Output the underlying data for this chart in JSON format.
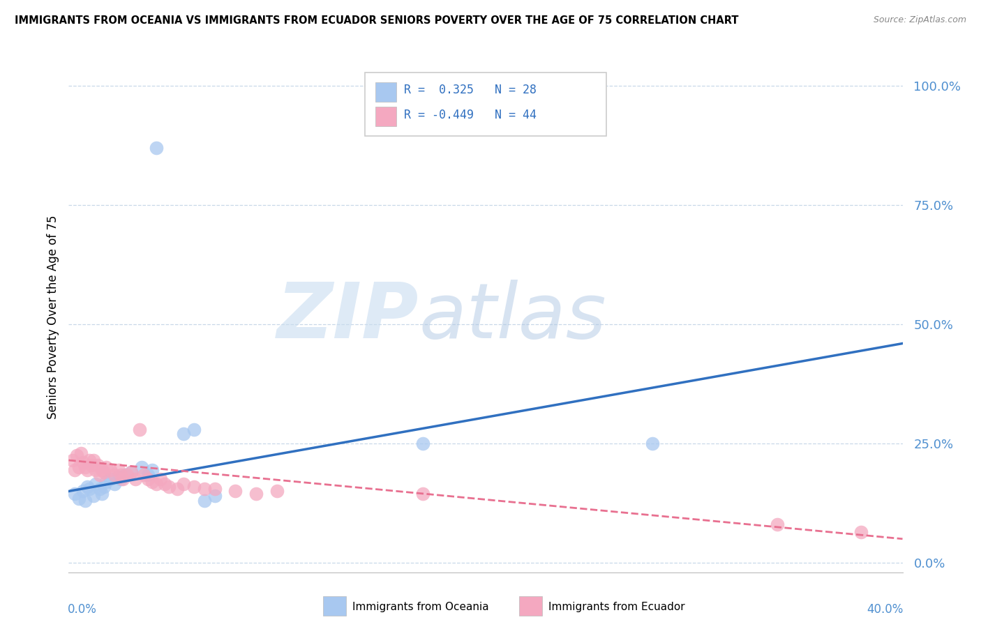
{
  "title": "IMMIGRANTS FROM OCEANIA VS IMMIGRANTS FROM ECUADOR SENIORS POVERTY OVER THE AGE OF 75 CORRELATION CHART",
  "source": "Source: ZipAtlas.com",
  "ylabel": "Seniors Poverty Over the Age of 75",
  "yticks_labels": [
    "100.0%",
    "75.0%",
    "50.0%",
    "25.0%",
    "0.0%"
  ],
  "ytick_vals": [
    1.0,
    0.75,
    0.5,
    0.25,
    0.0
  ],
  "xlim": [
    0,
    0.4
  ],
  "ylim": [
    -0.02,
    1.05
  ],
  "blue_color": "#A8C8F0",
  "pink_color": "#F4A8C0",
  "line_blue": "#3070C0",
  "line_pink": "#E87090",
  "oceania_points": [
    [
      0.003,
      0.145
    ],
    [
      0.005,
      0.135
    ],
    [
      0.007,
      0.15
    ],
    [
      0.008,
      0.13
    ],
    [
      0.009,
      0.16
    ],
    [
      0.01,
      0.155
    ],
    [
      0.012,
      0.14
    ],
    [
      0.013,
      0.165
    ],
    [
      0.015,
      0.155
    ],
    [
      0.016,
      0.145
    ],
    [
      0.017,
      0.16
    ],
    [
      0.018,
      0.17
    ],
    [
      0.02,
      0.175
    ],
    [
      0.022,
      0.165
    ],
    [
      0.024,
      0.18
    ],
    [
      0.025,
      0.175
    ],
    [
      0.027,
      0.185
    ],
    [
      0.03,
      0.19
    ],
    [
      0.035,
      0.2
    ],
    [
      0.038,
      0.185
    ],
    [
      0.04,
      0.195
    ],
    [
      0.042,
      0.87
    ],
    [
      0.055,
      0.27
    ],
    [
      0.06,
      0.28
    ],
    [
      0.065,
      0.13
    ],
    [
      0.07,
      0.14
    ],
    [
      0.17,
      0.25
    ],
    [
      0.28,
      0.25
    ]
  ],
  "ecuador_points": [
    [
      0.002,
      0.215
    ],
    [
      0.003,
      0.195
    ],
    [
      0.004,
      0.225
    ],
    [
      0.005,
      0.2
    ],
    [
      0.006,
      0.23
    ],
    [
      0.007,
      0.21
    ],
    [
      0.008,
      0.2
    ],
    [
      0.009,
      0.195
    ],
    [
      0.01,
      0.215
    ],
    [
      0.011,
      0.205
    ],
    [
      0.012,
      0.215
    ],
    [
      0.013,
      0.195
    ],
    [
      0.014,
      0.205
    ],
    [
      0.015,
      0.185
    ],
    [
      0.016,
      0.195
    ],
    [
      0.017,
      0.19
    ],
    [
      0.018,
      0.2
    ],
    [
      0.02,
      0.195
    ],
    [
      0.022,
      0.185
    ],
    [
      0.024,
      0.195
    ],
    [
      0.025,
      0.185
    ],
    [
      0.026,
      0.175
    ],
    [
      0.028,
      0.185
    ],
    [
      0.03,
      0.19
    ],
    [
      0.032,
      0.175
    ],
    [
      0.034,
      0.28
    ],
    [
      0.036,
      0.185
    ],
    [
      0.038,
      0.175
    ],
    [
      0.04,
      0.17
    ],
    [
      0.042,
      0.165
    ],
    [
      0.044,
      0.175
    ],
    [
      0.046,
      0.165
    ],
    [
      0.048,
      0.16
    ],
    [
      0.052,
      0.155
    ],
    [
      0.055,
      0.165
    ],
    [
      0.06,
      0.16
    ],
    [
      0.065,
      0.155
    ],
    [
      0.07,
      0.155
    ],
    [
      0.08,
      0.15
    ],
    [
      0.09,
      0.145
    ],
    [
      0.1,
      0.15
    ],
    [
      0.17,
      0.145
    ],
    [
      0.34,
      0.08
    ],
    [
      0.38,
      0.065
    ]
  ],
  "oceania_trend": [
    0.0,
    0.15,
    0.4,
    0.46
  ],
  "ecuador_trend": [
    0.0,
    0.215,
    0.4,
    0.05
  ],
  "legend_text1": "R =  0.325   N = 28",
  "legend_text2": "R = -0.449   N = 44",
  "legend_color": "#3070C0",
  "bottom_label1": "Immigrants from Oceania",
  "bottom_label2": "Immigrants from Ecuador"
}
